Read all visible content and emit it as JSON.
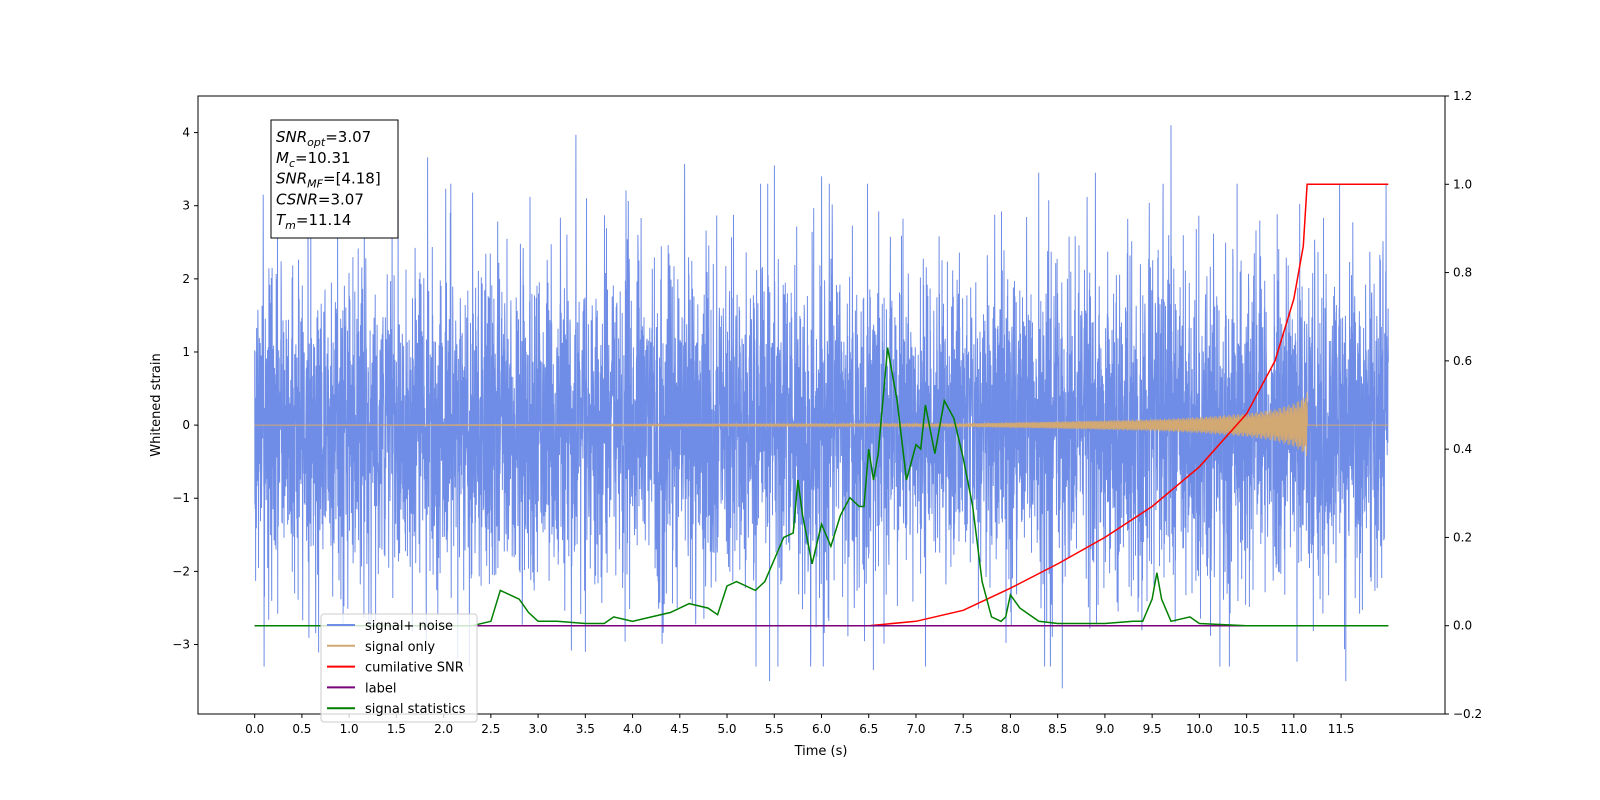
{
  "chart_data": {
    "type": "line",
    "xlabel": "Time (s)",
    "ylabel": "Whitened strain",
    "xlim": [
      -0.6,
      12.6
    ],
    "ylim": [
      -3.95,
      4.5
    ],
    "y2lim": [
      -0.2,
      1.2
    ],
    "x_ticks": [
      "0.0",
      "0.5",
      "1.0",
      "1.5",
      "2.0",
      "2.5",
      "3.0",
      "3.5",
      "4.0",
      "4.5",
      "5.0",
      "5.5",
      "6.0",
      "6.5",
      "7.0",
      "7.5",
      "8.0",
      "8.5",
      "9.0",
      "9.5",
      "10.0",
      "10.5",
      "11.0",
      "11.5"
    ],
    "y_ticks": [
      "−3",
      "−2",
      "−1",
      "0",
      "1",
      "2",
      "3",
      "4"
    ],
    "y2_ticks": [
      "−0.2",
      "0.0",
      "0.2",
      "0.4",
      "0.6",
      "0.8",
      "1.0",
      "1.2"
    ],
    "legend_position": "lower-left",
    "grid": false,
    "info_box": {
      "lines": [
        {
          "sym": "SNR",
          "sub": "opt",
          "val": "=3.07"
        },
        {
          "sym": "M",
          "sub": "c",
          "val": "=10.31"
        },
        {
          "sym": "SNR",
          "sub": "MF",
          "val": "=[4.18]"
        },
        {
          "sym": "CSNR",
          "sub": "",
          "val": "=3.07"
        },
        {
          "sym": "T",
          "sub": "m",
          "val": "=11.14"
        }
      ]
    },
    "series": [
      {
        "name": "signal+ noise",
        "color": "#6f8de6",
        "axis": "left",
        "x_range": [
          0.0,
          12.0
        ],
        "typical_range": [
          -2.5,
          2.5
        ],
        "spike_peaks": [
          [
            0.09,
            3.15
          ],
          [
            1.83,
            3.66
          ],
          [
            3.4,
            3.97
          ],
          [
            4.55,
            3.57
          ],
          [
            5.5,
            3.55
          ],
          [
            6.0,
            3.4
          ],
          [
            8.3,
            3.45
          ],
          [
            8.9,
            3.45
          ],
          [
            9.7,
            4.1
          ],
          [
            10.4,
            3.3
          ],
          [
            5.45,
            -3.5
          ],
          [
            6.55,
            -3.35
          ],
          [
            8.55,
            -3.6
          ],
          [
            11.55,
            -3.5
          ],
          [
            0.1,
            -3.3
          ],
          [
            3.5,
            -3.1
          ]
        ]
      },
      {
        "name": "signal only",
        "color": "#d2a873",
        "axis": "left",
        "x": [
          0,
          7.5,
          8.5,
          9.5,
          10.0,
          10.5,
          10.8,
          11.0,
          11.1,
          11.14,
          11.15,
          12.0
        ],
        "amplitude": [
          0.0,
          0.02,
          0.05,
          0.08,
          0.11,
          0.16,
          0.22,
          0.3,
          0.38,
          0.45,
          0.0,
          0.0
        ]
      },
      {
        "name": "cumilative SNR",
        "color": "#ff0000",
        "axis": "right",
        "x": [
          0,
          6.5,
          7.0,
          7.5,
          8.0,
          8.5,
          9.0,
          9.5,
          10.0,
          10.5,
          10.8,
          11.0,
          11.1,
          11.14,
          12.0
        ],
        "y": [
          0.0,
          0.0,
          0.01,
          0.035,
          0.085,
          0.14,
          0.2,
          0.27,
          0.36,
          0.48,
          0.6,
          0.74,
          0.86,
          1.0,
          1.0
        ]
      },
      {
        "name": "label",
        "color": "#7b007b",
        "axis": "right",
        "x": [
          0,
          12.0
        ],
        "y": [
          0.0,
          0.0
        ]
      },
      {
        "name": "signal statistics",
        "color": "#008000",
        "axis": "right",
        "x": [
          0.0,
          2.3,
          2.5,
          2.6,
          2.7,
          2.8,
          2.9,
          3.0,
          3.2,
          3.5,
          3.7,
          3.8,
          3.9,
          4.0,
          4.2,
          4.4,
          4.5,
          4.6,
          4.7,
          4.8,
          4.9,
          5.0,
          5.1,
          5.3,
          5.4,
          5.5,
          5.6,
          5.7,
          5.75,
          5.8,
          5.9,
          6.0,
          6.1,
          6.2,
          6.3,
          6.4,
          6.45,
          6.5,
          6.55,
          6.6,
          6.7,
          6.8,
          6.9,
          7.0,
          7.05,
          7.1,
          7.2,
          7.3,
          7.4,
          7.5,
          7.6,
          7.7,
          7.8,
          7.9,
          7.95,
          8.0,
          8.1,
          8.3,
          8.5,
          9.0,
          9.3,
          9.4,
          9.5,
          9.55,
          9.6,
          9.7,
          9.9,
          10.0,
          10.5,
          12.0
        ],
        "y": [
          0.0,
          0.0,
          0.01,
          0.08,
          0.07,
          0.06,
          0.03,
          0.01,
          0.01,
          0.005,
          0.005,
          0.02,
          0.015,
          0.01,
          0.02,
          0.03,
          0.04,
          0.05,
          0.045,
          0.04,
          0.025,
          0.09,
          0.1,
          0.08,
          0.1,
          0.15,
          0.2,
          0.21,
          0.33,
          0.25,
          0.14,
          0.23,
          0.18,
          0.25,
          0.29,
          0.27,
          0.27,
          0.4,
          0.33,
          0.39,
          0.63,
          0.51,
          0.33,
          0.41,
          0.4,
          0.5,
          0.39,
          0.51,
          0.47,
          0.38,
          0.27,
          0.1,
          0.02,
          0.01,
          0.02,
          0.07,
          0.04,
          0.01,
          0.005,
          0.005,
          0.01,
          0.01,
          0.06,
          0.12,
          0.06,
          0.01,
          0.02,
          0.005,
          0.0,
          0.0
        ]
      }
    ]
  }
}
